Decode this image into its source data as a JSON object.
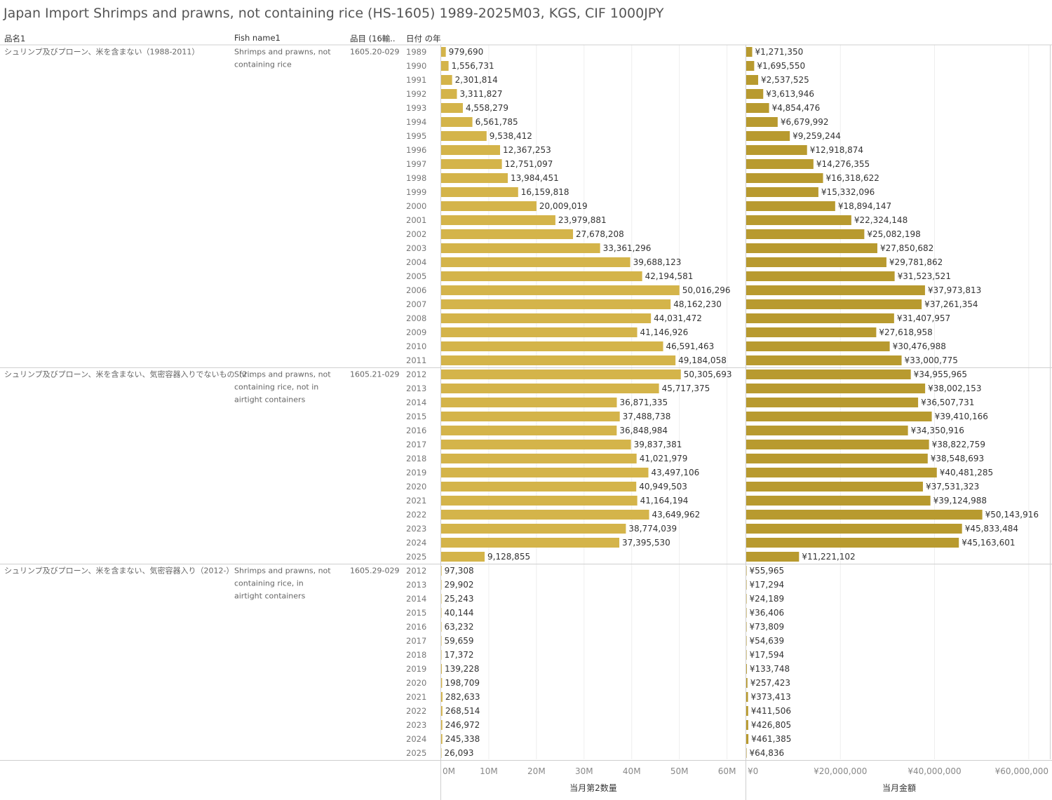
{
  "title": "Japan Import Shrimps and prawns, not containing rice (HS-1605) 1989-2025M03, KGS, CIF 1000JPY",
  "columns": [
    "品名1",
    "Fish name1",
    "品目 (16輸..",
    "日付 の年"
  ],
  "colors": {
    "qty_bar": "#D4B44A",
    "val_bar": "#B89A2F",
    "grid": "#eeeeee",
    "divider": "#cfcfcf"
  },
  "chart_data": {
    "type": "bar",
    "orientation": "horizontal",
    "title": "Japan Import Shrimps and prawns, not containing rice (HS-1605) 1989-2025M03, KGS, CIF 1000JPY",
    "measures": [
      {
        "key": "qty",
        "axis_title": "当月第2数量",
        "ticks": [
          "0M",
          "10M",
          "20M",
          "30M",
          "40M",
          "50M",
          "60M"
        ],
        "tick_values": [
          0,
          10000000,
          20000000,
          30000000,
          40000000,
          50000000,
          60000000
        ],
        "xlim": [
          0,
          63000000
        ]
      },
      {
        "key": "val",
        "axis_title": "当月金額",
        "ticks": [
          "¥0",
          "¥20,000,000",
          "¥40,000,000",
          "¥60,000,000"
        ],
        "tick_values": [
          0,
          20000000,
          40000000,
          60000000
        ],
        "xlim": [
          0,
          64500000
        ]
      }
    ],
    "groups": [
      {
        "name_jp": "シュリンプ及びプローン、米を含まない（1988-2011）",
        "name_en": "Shrimps and prawns, not containing rice",
        "code": "1605.20-029",
        "rows": [
          {
            "year": "1989",
            "qty": 979690,
            "qty_label": "979,690",
            "val": 1271350,
            "val_label": "¥1,271,350"
          },
          {
            "year": "1990",
            "qty": 1556731,
            "qty_label": "1,556,731",
            "val": 1695550,
            "val_label": "¥1,695,550"
          },
          {
            "year": "1991",
            "qty": 2301814,
            "qty_label": "2,301,814",
            "val": 2537525,
            "val_label": "¥2,537,525"
          },
          {
            "year": "1992",
            "qty": 3311827,
            "qty_label": "3,311,827",
            "val": 3613946,
            "val_label": "¥3,613,946"
          },
          {
            "year": "1993",
            "qty": 4558279,
            "qty_label": "4,558,279",
            "val": 4854476,
            "val_label": "¥4,854,476"
          },
          {
            "year": "1994",
            "qty": 6561785,
            "qty_label": "6,561,785",
            "val": 6679992,
            "val_label": "¥6,679,992"
          },
          {
            "year": "1995",
            "qty": 9538412,
            "qty_label": "9,538,412",
            "val": 9259244,
            "val_label": "¥9,259,244"
          },
          {
            "year": "1996",
            "qty": 12367253,
            "qty_label": "12,367,253",
            "val": 12918874,
            "val_label": "¥12,918,874"
          },
          {
            "year": "1997",
            "qty": 12751097,
            "qty_label": "12,751,097",
            "val": 14276355,
            "val_label": "¥14,276,355"
          },
          {
            "year": "1998",
            "qty": 13984451,
            "qty_label": "13,984,451",
            "val": 16318622,
            "val_label": "¥16,318,622"
          },
          {
            "year": "1999",
            "qty": 16159818,
            "qty_label": "16,159,818",
            "val": 15332096,
            "val_label": "¥15,332,096"
          },
          {
            "year": "2000",
            "qty": 20009019,
            "qty_label": "20,009,019",
            "val": 18894147,
            "val_label": "¥18,894,147"
          },
          {
            "year": "2001",
            "qty": 23979881,
            "qty_label": "23,979,881",
            "val": 22324148,
            "val_label": "¥22,324,148"
          },
          {
            "year": "2002",
            "qty": 27678208,
            "qty_label": "27,678,208",
            "val": 25082198,
            "val_label": "¥25,082,198"
          },
          {
            "year": "2003",
            "qty": 33361296,
            "qty_label": "33,361,296",
            "val": 27850682,
            "val_label": "¥27,850,682"
          },
          {
            "year": "2004",
            "qty": 39688123,
            "qty_label": "39,688,123",
            "val": 29781862,
            "val_label": "¥29,781,862"
          },
          {
            "year": "2005",
            "qty": 42194581,
            "qty_label": "42,194,581",
            "val": 31523521,
            "val_label": "¥31,523,521"
          },
          {
            "year": "2006",
            "qty": 50016296,
            "qty_label": "50,016,296",
            "val": 37973813,
            "val_label": "¥37,973,813"
          },
          {
            "year": "2007",
            "qty": 48162230,
            "qty_label": "48,162,230",
            "val": 37261354,
            "val_label": "¥37,261,354"
          },
          {
            "year": "2008",
            "qty": 44031472,
            "qty_label": "44,031,472",
            "val": 31407957,
            "val_label": "¥31,407,957"
          },
          {
            "year": "2009",
            "qty": 41146926,
            "qty_label": "41,146,926",
            "val": 27618958,
            "val_label": "¥27,618,958"
          },
          {
            "year": "2010",
            "qty": 46591463,
            "qty_label": "46,591,463",
            "val": 30476988,
            "val_label": "¥30,476,988"
          },
          {
            "year": "2011",
            "qty": 49184058,
            "qty_label": "49,184,058",
            "val": 33000775,
            "val_label": "¥33,000,775"
          }
        ]
      },
      {
        "name_jp": "シュリンプ及びプローン、米を含まない、気密容器入りでないもの（2..",
        "name_en": "Shrimps and prawns, not containing rice, not in airtight containers",
        "code": "1605.21-029",
        "rows": [
          {
            "year": "2012",
            "qty": 50305693,
            "qty_label": "50,305,693",
            "val": 34955965,
            "val_label": "¥34,955,965"
          },
          {
            "year": "2013",
            "qty": 45717375,
            "qty_label": "45,717,375",
            "val": 38002153,
            "val_label": "¥38,002,153"
          },
          {
            "year": "2014",
            "qty": 36871335,
            "qty_label": "36,871,335",
            "val": 36507731,
            "val_label": "¥36,507,731"
          },
          {
            "year": "2015",
            "qty": 37488738,
            "qty_label": "37,488,738",
            "val": 39410166,
            "val_label": "¥39,410,166"
          },
          {
            "year": "2016",
            "qty": 36848984,
            "qty_label": "36,848,984",
            "val": 34350916,
            "val_label": "¥34,350,916"
          },
          {
            "year": "2017",
            "qty": 39837381,
            "qty_label": "39,837,381",
            "val": 38822759,
            "val_label": "¥38,822,759"
          },
          {
            "year": "2018",
            "qty": 41021979,
            "qty_label": "41,021,979",
            "val": 38548693,
            "val_label": "¥38,548,693"
          },
          {
            "year": "2019",
            "qty": 43497106,
            "qty_label": "43,497,106",
            "val": 40481285,
            "val_label": "¥40,481,285"
          },
          {
            "year": "2020",
            "qty": 40949503,
            "qty_label": "40,949,503",
            "val": 37531323,
            "val_label": "¥37,531,323"
          },
          {
            "year": "2021",
            "qty": 41164194,
            "qty_label": "41,164,194",
            "val": 39124988,
            "val_label": "¥39,124,988"
          },
          {
            "year": "2022",
            "qty": 43649962,
            "qty_label": "43,649,962",
            "val": 50143916,
            "val_label": "¥50,143,916"
          },
          {
            "year": "2023",
            "qty": 38774039,
            "qty_label": "38,774,039",
            "val": 45833484,
            "val_label": "¥45,833,484"
          },
          {
            "year": "2024",
            "qty": 37395530,
            "qty_label": "37,395,530",
            "val": 45163601,
            "val_label": "¥45,163,601"
          },
          {
            "year": "2025",
            "qty": 9128855,
            "qty_label": "9,128,855",
            "val": 11221102,
            "val_label": "¥11,221,102"
          }
        ]
      },
      {
        "name_jp": "シュリンプ及びプローン、米を含まない、気密容器入り（2012-）",
        "name_en": "Shrimps and prawns, not containing rice, in airtight containers",
        "code": "1605.29-029",
        "rows": [
          {
            "year": "2012",
            "qty": 97308,
            "qty_label": "97,308",
            "val": 55965,
            "val_label": "¥55,965"
          },
          {
            "year": "2013",
            "qty": 29902,
            "qty_label": "29,902",
            "val": 17294,
            "val_label": "¥17,294"
          },
          {
            "year": "2014",
            "qty": 25243,
            "qty_label": "25,243",
            "val": 24189,
            "val_label": "¥24,189"
          },
          {
            "year": "2015",
            "qty": 40144,
            "qty_label": "40,144",
            "val": 36406,
            "val_label": "¥36,406"
          },
          {
            "year": "2016",
            "qty": 63232,
            "qty_label": "63,232",
            "val": 73809,
            "val_label": "¥73,809"
          },
          {
            "year": "2017",
            "qty": 59659,
            "qty_label": "59,659",
            "val": 54639,
            "val_label": "¥54,639"
          },
          {
            "year": "2018",
            "qty": 17372,
            "qty_label": "17,372",
            "val": 17594,
            "val_label": "¥17,594"
          },
          {
            "year": "2019",
            "qty": 139228,
            "qty_label": "139,228",
            "val": 133748,
            "val_label": "¥133,748"
          },
          {
            "year": "2020",
            "qty": 198709,
            "qty_label": "198,709",
            "val": 257423,
            "val_label": "¥257,423"
          },
          {
            "year": "2021",
            "qty": 282633,
            "qty_label": "282,633",
            "val": 373413,
            "val_label": "¥373,413"
          },
          {
            "year": "2022",
            "qty": 268514,
            "qty_label": "268,514",
            "val": 411506,
            "val_label": "¥411,506"
          },
          {
            "year": "2023",
            "qty": 246972,
            "qty_label": "246,972",
            "val": 426805,
            "val_label": "¥426,805"
          },
          {
            "year": "2024",
            "qty": 245338,
            "qty_label": "245,338",
            "val": 461385,
            "val_label": "¥461,385"
          },
          {
            "year": "2025",
            "qty": 26093,
            "qty_label": "26,093",
            "val": 64836,
            "val_label": "¥64,836"
          }
        ]
      }
    ]
  }
}
